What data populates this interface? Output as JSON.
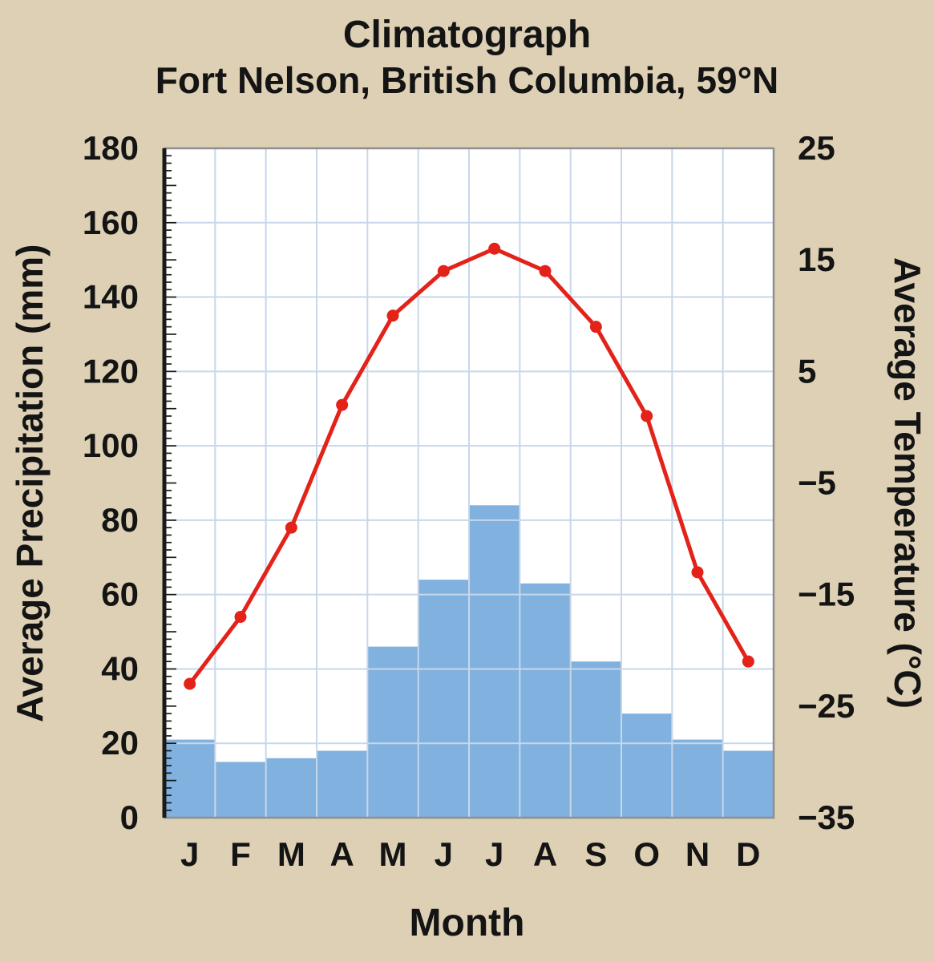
{
  "title": {
    "line1": "Climatograph",
    "line2": "Fort Nelson, British Columbia, 59°N"
  },
  "chart_data": {
    "type": "bar",
    "subtype": "climatograph-combo-bar-line",
    "categories": [
      "J",
      "F",
      "M",
      "A",
      "M",
      "J",
      "J",
      "A",
      "S",
      "O",
      "N",
      "D"
    ],
    "series": [
      {
        "name": "Average Precipitation (mm)",
        "type": "bar",
        "axis": "left",
        "values": [
          21,
          15,
          16,
          18,
          46,
          64,
          84,
          63,
          42,
          28,
          21,
          18
        ]
      },
      {
        "name": "Average Temperature (°C)",
        "type": "line",
        "axis": "right",
        "values": [
          -23,
          -17,
          -9,
          2,
          10,
          14,
          16,
          14,
          9,
          1,
          -13,
          -21
        ]
      }
    ],
    "xlabel": "Month",
    "left_axis": {
      "label": "Average Precipitation (mm)",
      "min": 0,
      "max": 180,
      "major_step": 20,
      "minor_step": 2,
      "ticks": [
        "180",
        "160",
        "140",
        "120",
        "100",
        "80",
        "60",
        "40",
        "20",
        "0"
      ]
    },
    "right_axis": {
      "label": "Average Temperature (°C)",
      "min": -35,
      "max": 25,
      "major_step": 10,
      "ticks": [
        "25",
        "15",
        "5",
        "−5",
        "−15",
        "−25",
        "−35"
      ]
    },
    "grid": true,
    "legend": "none",
    "colors": {
      "background": "#ddd0b4",
      "plot_bg": "#ffffff",
      "grid": "#c8d7e9",
      "bar": "#80b1df",
      "line": "#e32219",
      "frame": "#8f8f8f",
      "axis": "#1a1a1a",
      "text": "#141414"
    }
  }
}
